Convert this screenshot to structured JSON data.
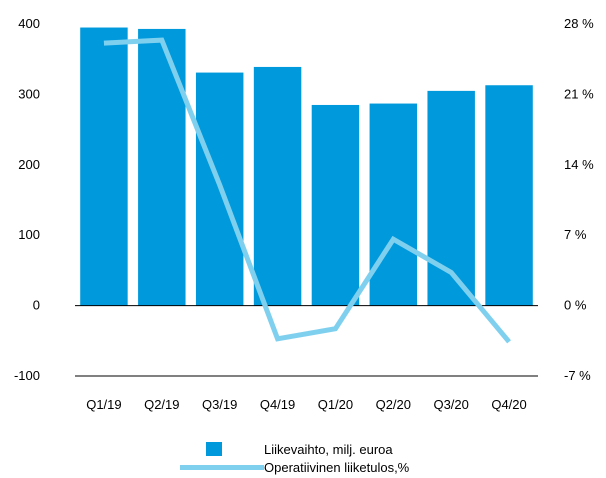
{
  "chart_data": {
    "type": "bar",
    "categories": [
      "Q1/19",
      "Q2/19",
      "Q3/19",
      "Q4/19",
      "Q1/20",
      "Q2/20",
      "Q3/20",
      "Q4/20"
    ],
    "series": [
      {
        "name": "Liikevaihto, milj. euroa",
        "type": "bar",
        "axis": "left",
        "color": "#0099db",
        "values": [
          395,
          393,
          331,
          339,
          285,
          287,
          305,
          313
        ]
      },
      {
        "name": "Operatiivinen liiketulos,%",
        "type": "line",
        "axis": "right",
        "color": "#7fd0ef",
        "values": [
          26.1,
          26.4,
          12.0,
          -3.3,
          -2.3,
          6.6,
          3.3,
          -3.6
        ]
      }
    ],
    "y_left": {
      "ylim": [
        -100,
        400
      ],
      "ticks": [
        "-100",
        "0",
        "100",
        "200",
        "300",
        "400"
      ],
      "tick_values": [
        -100,
        0,
        100,
        200,
        300,
        400
      ]
    },
    "y_right": {
      "ylim": [
        -7,
        28
      ],
      "ticks": [
        "-7 %",
        "0 %",
        "7 %",
        "14 %",
        "21 %",
        "28 %"
      ],
      "tick_values": [
        -7,
        0,
        7,
        14,
        21,
        28
      ]
    },
    "grid": false,
    "legend": "bottom"
  }
}
